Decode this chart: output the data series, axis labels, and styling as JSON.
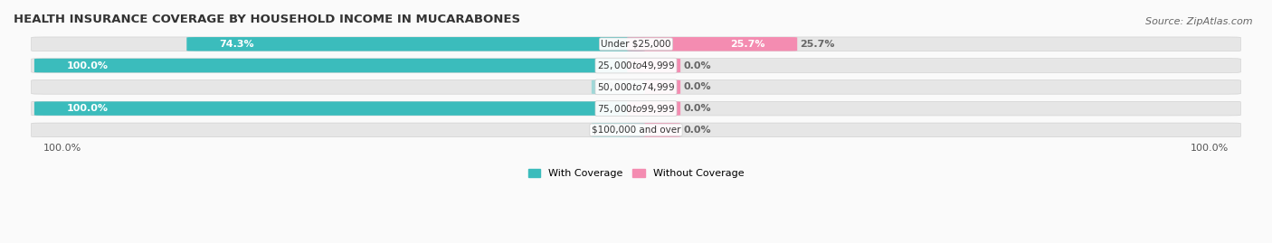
{
  "title": "HEALTH INSURANCE COVERAGE BY HOUSEHOLD INCOME IN MUCARABONES",
  "source": "Source: ZipAtlas.com",
  "categories": [
    "Under $25,000",
    "$25,000 to $49,999",
    "$50,000 to $74,999",
    "$75,000 to $99,999",
    "$100,000 and over"
  ],
  "with_coverage": [
    74.3,
    100.0,
    0.0,
    100.0,
    0.0
  ],
  "without_coverage": [
    25.7,
    0.0,
    0.0,
    0.0,
    0.0
  ],
  "color_with": "#3bbcbc",
  "color_with_light": "#a0d8d8",
  "color_without": "#f48cb1",
  "color_without_light": "#f9c4d8",
  "bg_color": "#f2f2f2",
  "bar_bg_color": "#e6e6e6",
  "fig_bg": "#fafafa",
  "bar_height": 0.62,
  "figsize": [
    14.06,
    2.69
  ],
  "dpi": 100,
  "legend_with": "With Coverage",
  "legend_without": "Without Coverage",
  "title_fontsize": 9.5,
  "label_fontsize": 8,
  "tick_fontsize": 8,
  "source_fontsize": 8,
  "category_fontsize": 7.5
}
